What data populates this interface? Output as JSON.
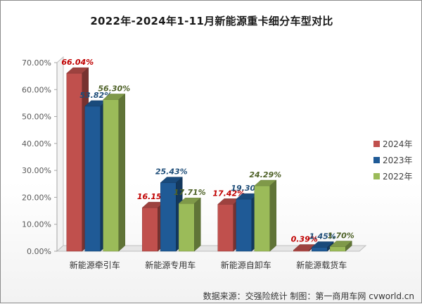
{
  "header": {
    "title": "2022年-2024年1-11月新能源重卡细分车型对比"
  },
  "footer": {
    "source": "数据来源：交强险统计  制图：第一商用车网 cvworld.cn"
  },
  "chart_data": {
    "type": "bar",
    "title": "2022年-2024年1-11月新能源重卡细分车型对比",
    "categories": [
      "新能源牵引车",
      "新能源专用车",
      "新能源自卸车",
      "新能源载货车"
    ],
    "series": [
      {
        "name": "2024年",
        "color": "#c0504d",
        "values": [
          66.04,
          16.15,
          17.42,
          0.39
        ],
        "labels": [
          "66.04%",
          "16.15%",
          "17.42%",
          "0.39%"
        ]
      },
      {
        "name": "2023年",
        "color": "#1f5a96",
        "values": [
          53.82,
          25.43,
          19.3,
          1.45
        ],
        "labels": [
          "53.82%",
          "25.43%",
          "19.30%",
          "1.45%"
        ]
      },
      {
        "name": "2022年",
        "color": "#9bbb59",
        "values": [
          56.3,
          17.71,
          24.29,
          1.7
        ],
        "labels": [
          "56.30%",
          "17.71%",
          "24.29%",
          "1.70%"
        ]
      }
    ],
    "label_colors": {
      "2024年": "#c00000",
      "2023年": "#1f4e79",
      "2022年": "#4f6228"
    },
    "ylim": [
      0,
      70
    ],
    "yticks": [
      "0.00%",
      "10.00%",
      "20.00%",
      "30.00%",
      "40.00%",
      "50.00%",
      "60.00%",
      "70.00%"
    ],
    "ytick_values": [
      0,
      10,
      20,
      30,
      40,
      50,
      60,
      70
    ],
    "legend": {
      "position": "right",
      "order": [
        "2024年",
        "2023年",
        "2022年"
      ]
    },
    "grid": false,
    "style": "3d-bar"
  }
}
